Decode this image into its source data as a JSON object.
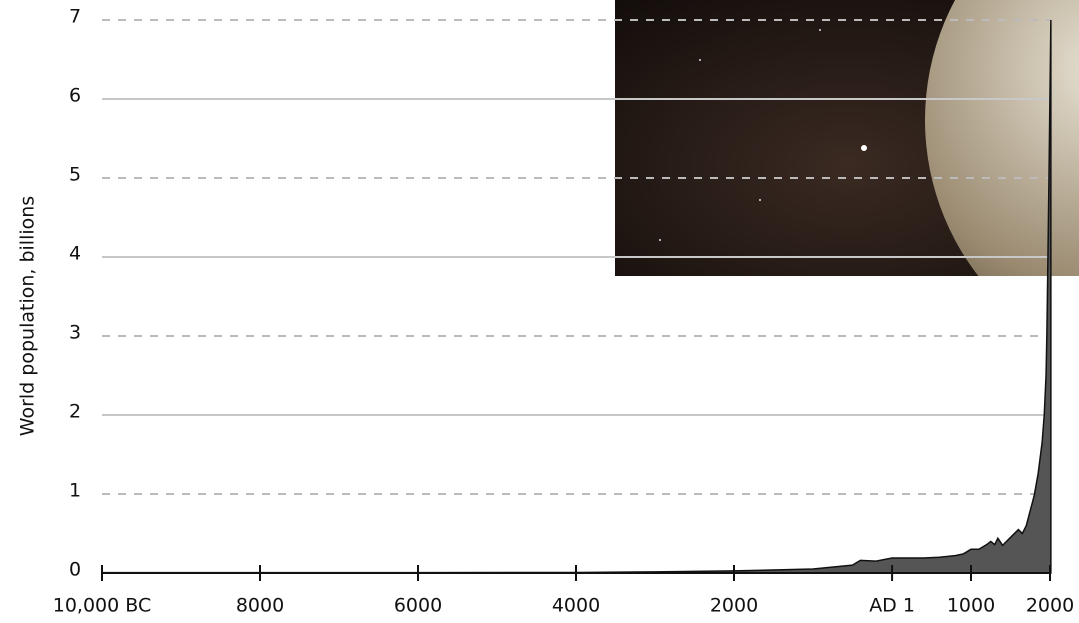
{
  "chart_data": {
    "type": "area",
    "y_label": "World population, billions",
    "x": [
      -10000,
      -8000,
      -6000,
      -4000,
      -3000,
      -2000,
      -1000,
      -500,
      -400,
      -200,
      1,
      200,
      400,
      600,
      800,
      900,
      1000,
      1100,
      1200,
      1250,
      1300,
      1340,
      1400,
      1500,
      1600,
      1650,
      1700,
      1750,
      1800,
      1850,
      1900,
      1927,
      1950,
      1960,
      1974,
      1987,
      1999,
      2011
    ],
    "values": [
      0.004,
      0.005,
      0.005,
      0.007,
      0.014,
      0.027,
      0.05,
      0.1,
      0.16,
      0.15,
      0.19,
      0.19,
      0.19,
      0.2,
      0.22,
      0.24,
      0.3,
      0.3,
      0.36,
      0.4,
      0.36,
      0.44,
      0.35,
      0.45,
      0.55,
      0.5,
      0.6,
      0.79,
      0.98,
      1.26,
      1.65,
      2.0,
      2.5,
      3.0,
      4.0,
      5.0,
      6.0,
      7.0
    ],
    "color": "#555555",
    "xlim": [
      -10000,
      2000
    ],
    "xticks": [
      {
        "value": -10000,
        "label": "10,000 BC"
      },
      {
        "value": -8000,
        "label": "8000"
      },
      {
        "value": -6000,
        "label": "6000"
      },
      {
        "value": -4000,
        "label": "4000"
      },
      {
        "value": -2000,
        "label": "2000"
      },
      {
        "value": 1,
        "label": "AD 1"
      },
      1000,
      2000
    ],
    "ylim": [
      0,
      7
    ],
    "yticks": [
      0,
      1,
      2,
      3,
      4,
      5,
      6,
      7
    ],
    "grid": true
  }
}
